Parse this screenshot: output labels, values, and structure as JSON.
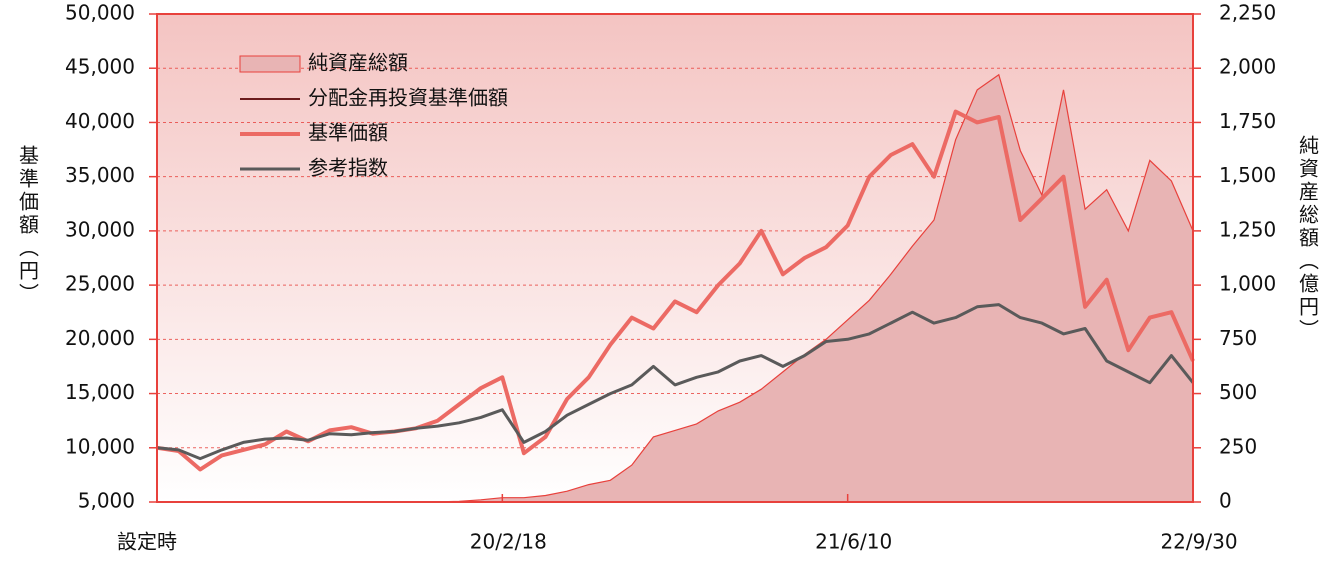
{
  "chart_data": {
    "type": "line",
    "x": [
      "設定時",
      null,
      null,
      null,
      null,
      null,
      null,
      null,
      null,
      null,
      null,
      null,
      null,
      null,
      null,
      null,
      "20/2/18",
      null,
      null,
      null,
      null,
      null,
      null,
      null,
      null,
      null,
      null,
      null,
      null,
      null,
      null,
      null,
      "21/6/10",
      null,
      null,
      null,
      null,
      null,
      null,
      null,
      null,
      null,
      null,
      null,
      null,
      null,
      null,
      null,
      "22/9/30"
    ],
    "y_label": "基準価額（円）",
    "y2_label": "純資産総額（億円）",
    "ylim": [
      5000,
      50000
    ],
    "yticks": [
      {
        "value": 5000,
        "label": "5,000"
      },
      {
        "value": 10000,
        "label": "10,000"
      },
      {
        "value": 15000,
        "label": "15,000"
      },
      {
        "value": 20000,
        "label": "20,000"
      },
      {
        "value": 25000,
        "label": "25,000"
      },
      {
        "value": 30000,
        "label": "30,000"
      },
      {
        "value": 35000,
        "label": "35,000"
      },
      {
        "value": 40000,
        "label": "40,000"
      },
      {
        "value": 45000,
        "label": "45,000"
      },
      {
        "value": 50000,
        "label": "50,000"
      }
    ],
    "y2lim": [
      0,
      2250
    ],
    "y2ticks": [
      0,
      250,
      500,
      750,
      {
        "value": 1000,
        "label": "1,000"
      },
      {
        "value": 1250,
        "label": "1,250"
      },
      {
        "value": 1500,
        "label": "1,500"
      },
      {
        "value": 1750,
        "label": "1,750"
      },
      {
        "value": 2000,
        "label": "2,000"
      },
      {
        "value": 2250,
        "label": "2,250"
      }
    ],
    "grid": true,
    "legend": "upper left",
    "series": [
      {
        "name": "純資産総額",
        "kind": "area",
        "axis": "y2",
        "color": "#e8b4b4",
        "edge_color": "#e8413c",
        "values": [
          0,
          0,
          0,
          0,
          0,
          0,
          0,
          0,
          0,
          0,
          0,
          0,
          0,
          1,
          3,
          10,
          20,
          20,
          30,
          50,
          80,
          100,
          170,
          300,
          330,
          360,
          420,
          460,
          520,
          600,
          680,
          750,
          840,
          930,
          1050,
          1180,
          1300,
          1670,
          1900,
          1970,
          1620,
          1415,
          1900,
          1350,
          1440,
          1250,
          1575,
          1480,
          1250
        ]
      },
      {
        "name": "分配金再投資基準価額",
        "kind": "line",
        "color": "#6b1c1c",
        "values": [
          10000,
          9700,
          8000,
          9300,
          9800,
          10300,
          11500,
          10600,
          11600,
          11900,
          11300,
          11500,
          11800,
          12500,
          14000,
          15500,
          16500,
          9500,
          11000,
          14500,
          16500,
          19500,
          22000,
          21000,
          23500,
          22500,
          25000,
          27000,
          30000,
          26000,
          27500,
          28500,
          30500,
          35000,
          37000,
          38000,
          35000,
          41000,
          40000,
          40500,
          31000,
          33000,
          35000,
          23000,
          25500,
          19000,
          22000,
          22500,
          18000
        ]
      },
      {
        "name": "基準価額",
        "kind": "line",
        "color": "#ec6a64",
        "values": [
          10000,
          9700,
          8000,
          9300,
          9800,
          10300,
          11500,
          10600,
          11600,
          11900,
          11300,
          11500,
          11800,
          12500,
          14000,
          15500,
          16500,
          9500,
          11000,
          14500,
          16500,
          19500,
          22000,
          21000,
          23500,
          22500,
          25000,
          27000,
          30000,
          26000,
          27500,
          28500,
          30500,
          35000,
          37000,
          38000,
          35000,
          41000,
          40000,
          40500,
          31000,
          33000,
          35000,
          23000,
          25500,
          19000,
          22000,
          22500,
          18000
        ]
      },
      {
        "name": "参考指数",
        "kind": "line",
        "color": "#5a5a5a",
        "values": [
          10000,
          9800,
          9000,
          9800,
          10500,
          10800,
          10900,
          10700,
          11300,
          11200,
          11400,
          11500,
          11800,
          12000,
          12300,
          12800,
          13500,
          10500,
          11500,
          13000,
          14000,
          15000,
          15800,
          17500,
          15800,
          16500,
          17000,
          18000,
          18500,
          17500,
          18500,
          19800,
          20000,
          20500,
          21500,
          22500,
          21500,
          22000,
          23000,
          23200,
          22000,
          21500,
          20500,
          21000,
          18000,
          17000,
          16000,
          18500,
          16000
        ]
      }
    ]
  }
}
